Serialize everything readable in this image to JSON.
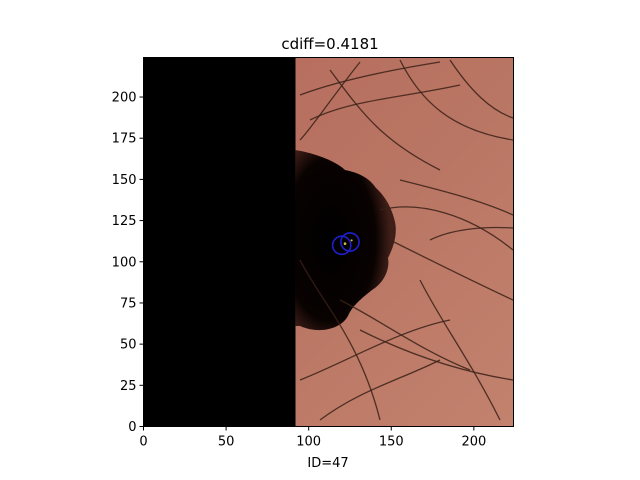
{
  "chart_data": {
    "type": "heatmap",
    "title": "cdiff=0.4181",
    "xlabel": "ID=47",
    "ylabel": "",
    "xlim": [
      0,
      224
    ],
    "ylim": [
      0,
      224
    ],
    "xticks": [
      0,
      50,
      100,
      150,
      200
    ],
    "yticks": [
      0,
      25,
      50,
      75,
      100,
      125,
      150,
      175,
      200
    ],
    "grid": false,
    "image": "dermoscopy skin image; left region masked black up to x≈92; dark lesion on the boundary",
    "contours": [
      {
        "name": "",
        "color": "#1f1fcf",
        "center": [
          120,
          110
        ],
        "radius": [
          5.5,
          5.5
        ]
      },
      {
        "name": "",
        "color": "#1f1fcf",
        "center": [
          125,
          112
        ],
        "radius": [
          5.5,
          5.5
        ]
      }
    ],
    "colors": {
      "skin": "#b2705f",
      "mask": "#000000",
      "hair": "#3a2118",
      "contour": "#1f1fcf"
    }
  }
}
